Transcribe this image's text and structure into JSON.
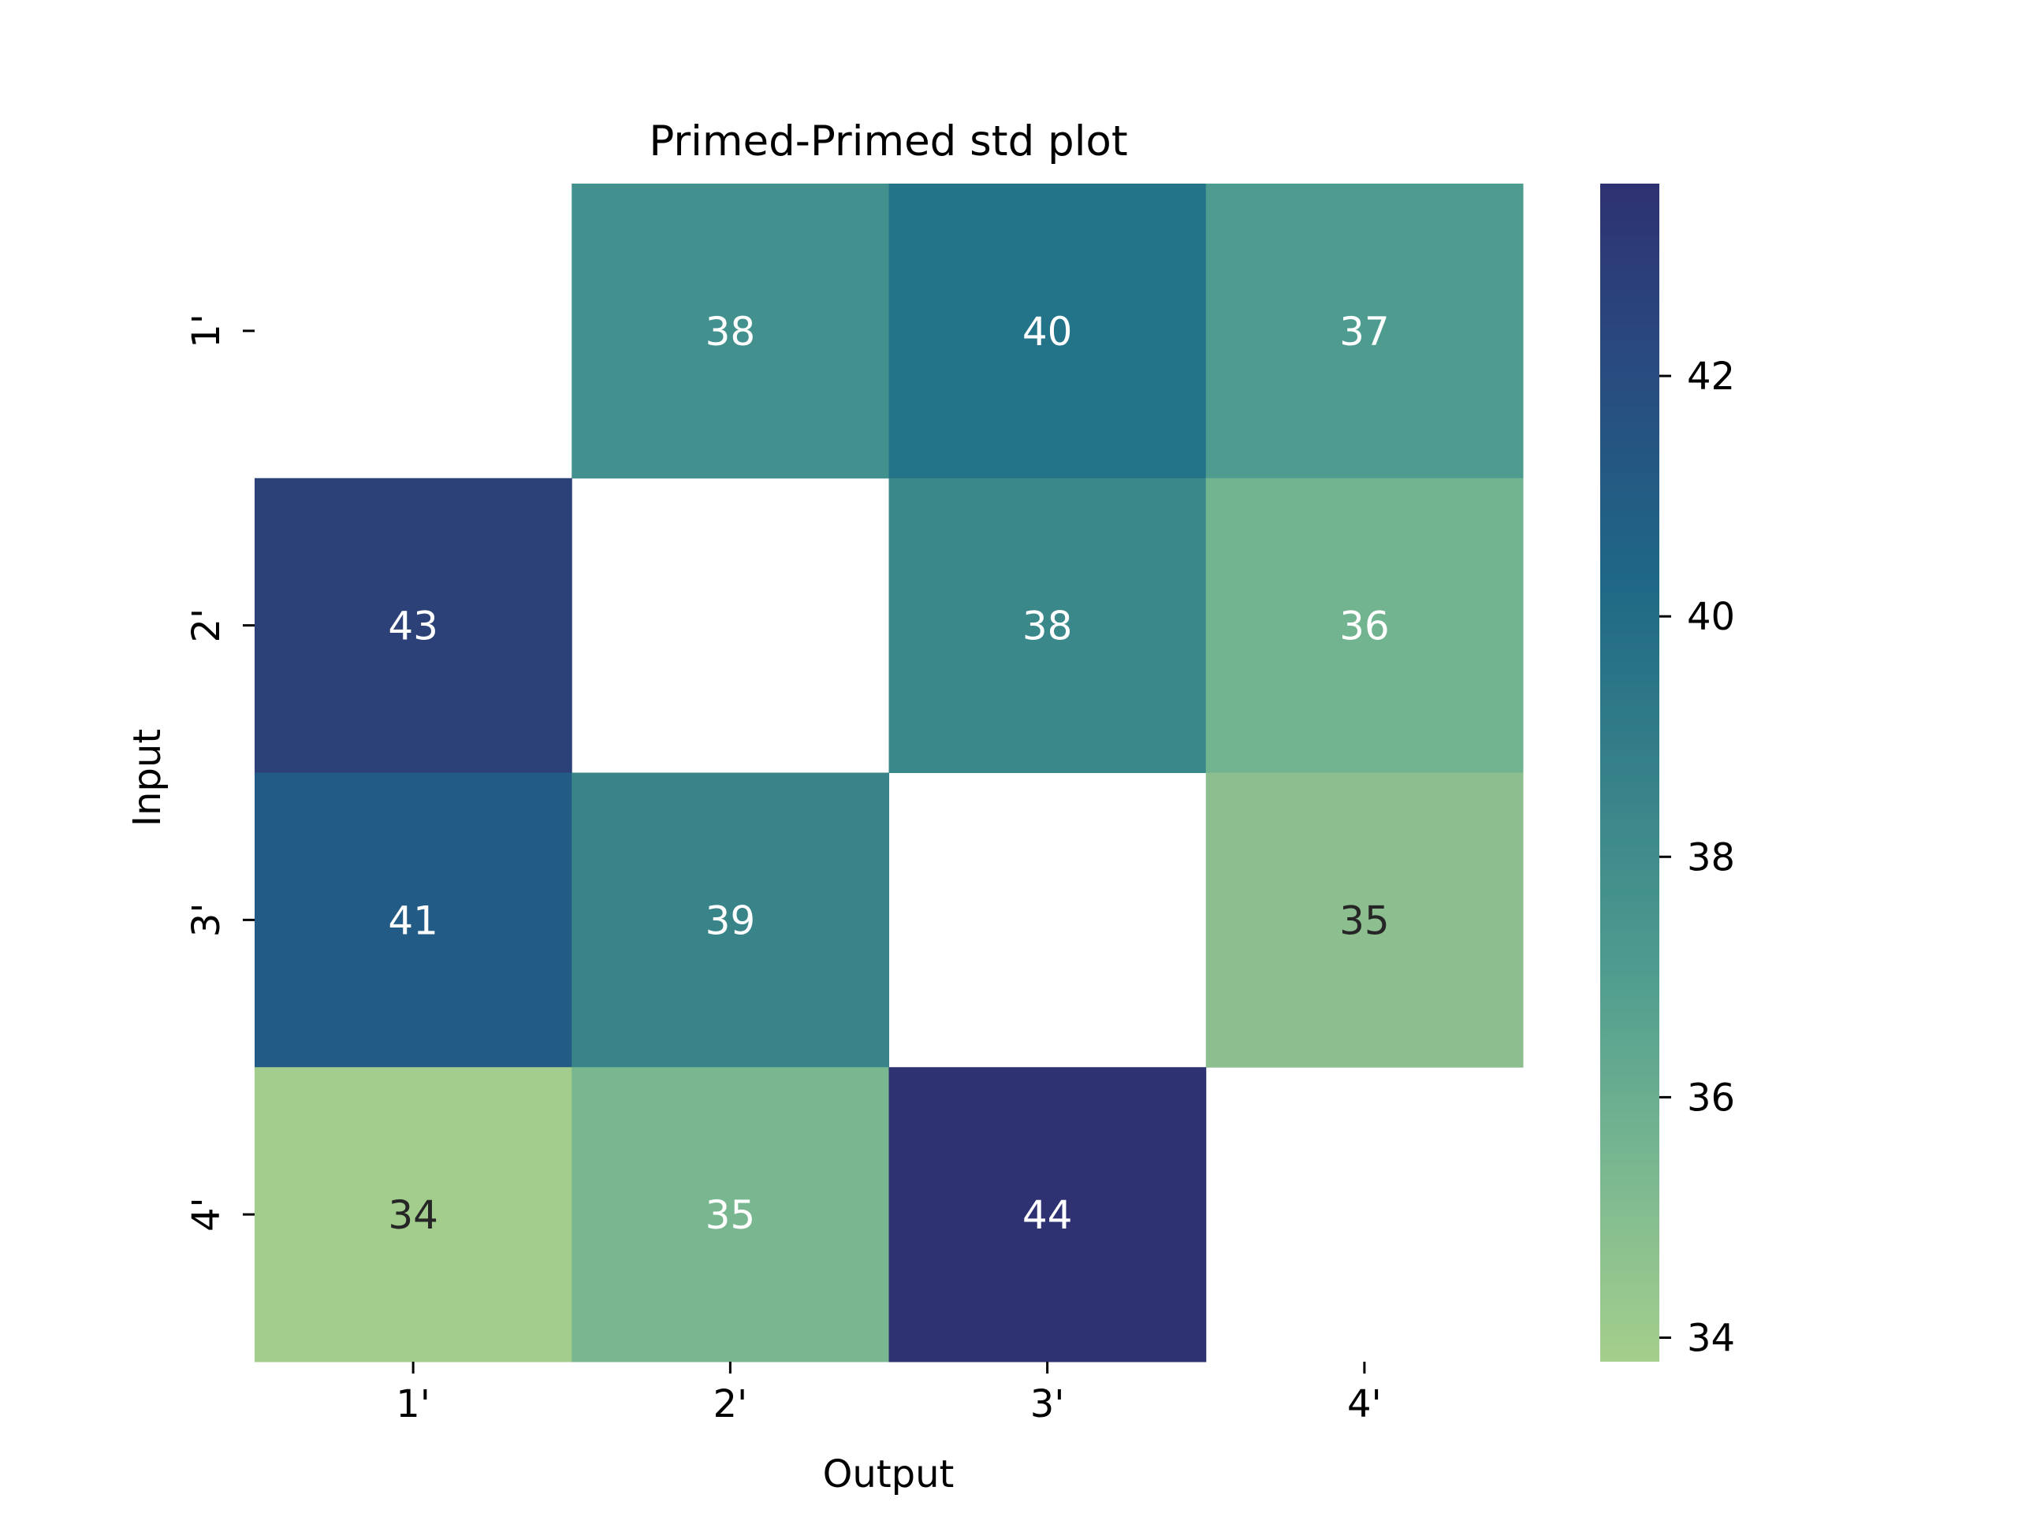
{
  "chart_data": {
    "type": "heatmap",
    "title": "Primed-Primed std plot",
    "xlabel": "Output",
    "ylabel": "Input",
    "x_categories": [
      "1'",
      "2'",
      "3'",
      "4'"
    ],
    "y_categories": [
      "1'",
      "2'",
      "3'",
      "4'"
    ],
    "values": [
      [
        null,
        38,
        40,
        37
      ],
      [
        43,
        null,
        38,
        36
      ],
      [
        41,
        39,
        null,
        35
      ],
      [
        34,
        35,
        44,
        null
      ]
    ],
    "cell_colors": [
      [
        null,
        "#43918e",
        "#237389",
        "#4d9c8f"
      ],
      [
        "#2c4177",
        null,
        "#3b888b",
        "#72b48f"
      ],
      [
        "#225b85",
        "#388489",
        null,
        "#8dbe8f"
      ],
      [
        "#a3cd8c",
        "#79b790",
        "#2e3272",
        null
      ]
    ],
    "text_colors": [
      [
        null,
        "#ffffff",
        "#ffffff",
        "#ffffff"
      ],
      [
        "#ffffff",
        null,
        "#ffffff",
        "#ffffff"
      ],
      [
        "#ffffff",
        "#ffffff",
        null,
        "#262626"
      ],
      [
        "#262626",
        "#ffffff",
        "#ffffff",
        null
      ]
    ],
    "colorbar": {
      "range": [
        33.8,
        43.6
      ],
      "ticks": [
        34,
        36,
        38,
        40,
        42
      ],
      "tick_labels": [
        "34",
        "36",
        "38",
        "40",
        "42"
      ],
      "colors": [
        "#a5cf8c",
        "#79b790",
        "#4e9c8f",
        "#368189",
        "#1f6786",
        "#284d80",
        "#2e3272"
      ]
    },
    "grid": false
  }
}
